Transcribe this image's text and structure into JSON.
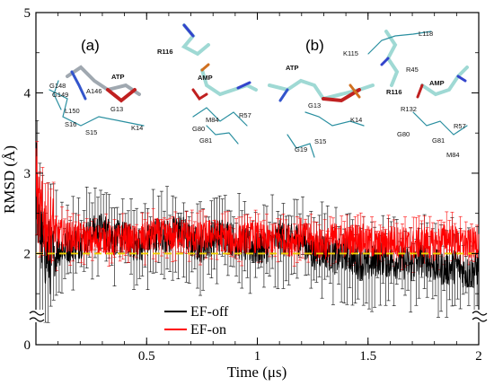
{
  "chart_data": {
    "type": "line",
    "xlabel": "Time (μs)",
    "ylabel": "RMSD (Å)",
    "xlim": [
      0,
      2
    ],
    "ylim": [
      0,
      5
    ],
    "x_ticks": [
      "0.5",
      "1",
      "1.5",
      "2"
    ],
    "y_ticks": [
      "0",
      "2",
      "3",
      "4",
      "5"
    ],
    "axis_break": "y between 0 and 1.2",
    "legend_position": "bottom-center",
    "series": [
      {
        "name": "EF-off",
        "color": "#000000",
        "x": [
          0,
          0.01,
          0.03,
          0.05,
          0.08,
          0.1,
          0.15,
          0.2,
          0.25,
          0.3,
          0.35,
          0.4,
          0.45,
          0.5,
          0.55,
          0.6,
          0.65,
          0.7,
          0.75,
          0.8,
          0.85,
          0.9,
          0.95,
          1.0,
          1.05,
          1.1,
          1.15,
          1.2,
          1.25,
          1.3,
          1.35,
          1.4,
          1.45,
          1.5,
          1.55,
          1.6,
          1.65,
          1.7,
          1.75,
          1.8,
          1.85,
          1.9,
          1.95,
          2.0
        ],
        "y": [
          3.2,
          2.4,
          2.1,
          2.0,
          1.9,
          2.05,
          2.1,
          2.15,
          2.25,
          2.3,
          2.2,
          2.2,
          2.1,
          2.15,
          2.25,
          2.2,
          2.3,
          2.15,
          2.1,
          2.2,
          2.25,
          2.15,
          2.1,
          2.05,
          2.1,
          2.2,
          2.15,
          2.2,
          2.0,
          2.05,
          1.95,
          2.0,
          1.9,
          1.85,
          1.95,
          1.9,
          1.9,
          1.85,
          1.95,
          1.85,
          1.8,
          1.85,
          1.75,
          1.8
        ],
        "error_bar_half_width": 0.45
      },
      {
        "name": "EF-on",
        "color": "#ff0000",
        "x": [
          0,
          0.01,
          0.03,
          0.05,
          0.08,
          0.1,
          0.15,
          0.2,
          0.25,
          0.3,
          0.35,
          0.4,
          0.45,
          0.5,
          0.55,
          0.6,
          0.65,
          0.7,
          0.75,
          0.8,
          0.85,
          0.9,
          0.95,
          1.0,
          1.05,
          1.1,
          1.15,
          1.2,
          1.25,
          1.3,
          1.35,
          1.4,
          1.45,
          1.5,
          1.55,
          1.6,
          1.65,
          1.7,
          1.75,
          1.8,
          1.85,
          1.9,
          1.95,
          2.0
        ],
        "y": [
          3.0,
          2.55,
          2.45,
          2.35,
          2.3,
          2.25,
          2.2,
          2.2,
          2.15,
          2.2,
          2.15,
          2.2,
          2.15,
          2.2,
          2.25,
          2.2,
          2.25,
          2.2,
          2.2,
          2.25,
          2.2,
          2.15,
          2.2,
          2.2,
          2.15,
          2.2,
          2.15,
          2.25,
          2.15,
          2.1,
          2.2,
          2.15,
          2.2,
          2.15,
          2.1,
          2.15,
          2.15,
          2.1,
          2.15,
          2.1,
          2.2,
          2.15,
          2.1,
          2.15
        ],
        "error_bar_half_width": 0.25
      }
    ],
    "reference_line": {
      "y": 2.0,
      "color": "#f0d000",
      "style": "dashed"
    }
  },
  "legend": {
    "items": [
      {
        "label": "EF-off",
        "color": "#000000"
      },
      {
        "label": "EF-on",
        "color": "#ff0000"
      }
    ]
  },
  "panels": {
    "a": {
      "label": "(a)",
      "residues": [
        "R116",
        "ATP",
        "AMP",
        "G148",
        "G149",
        "A146",
        "L150",
        "S16",
        "S15",
        "G13",
        "K14",
        "M84",
        "R57",
        "G80",
        "G81"
      ]
    },
    "b": {
      "label": "(b)",
      "residues": [
        "L118",
        "K115",
        "R45",
        "R116",
        "ATP",
        "AMP",
        "G13",
        "R132",
        "S15",
        "K14",
        "G19",
        "G80",
        "R57",
        "G81",
        "M84"
      ]
    }
  }
}
